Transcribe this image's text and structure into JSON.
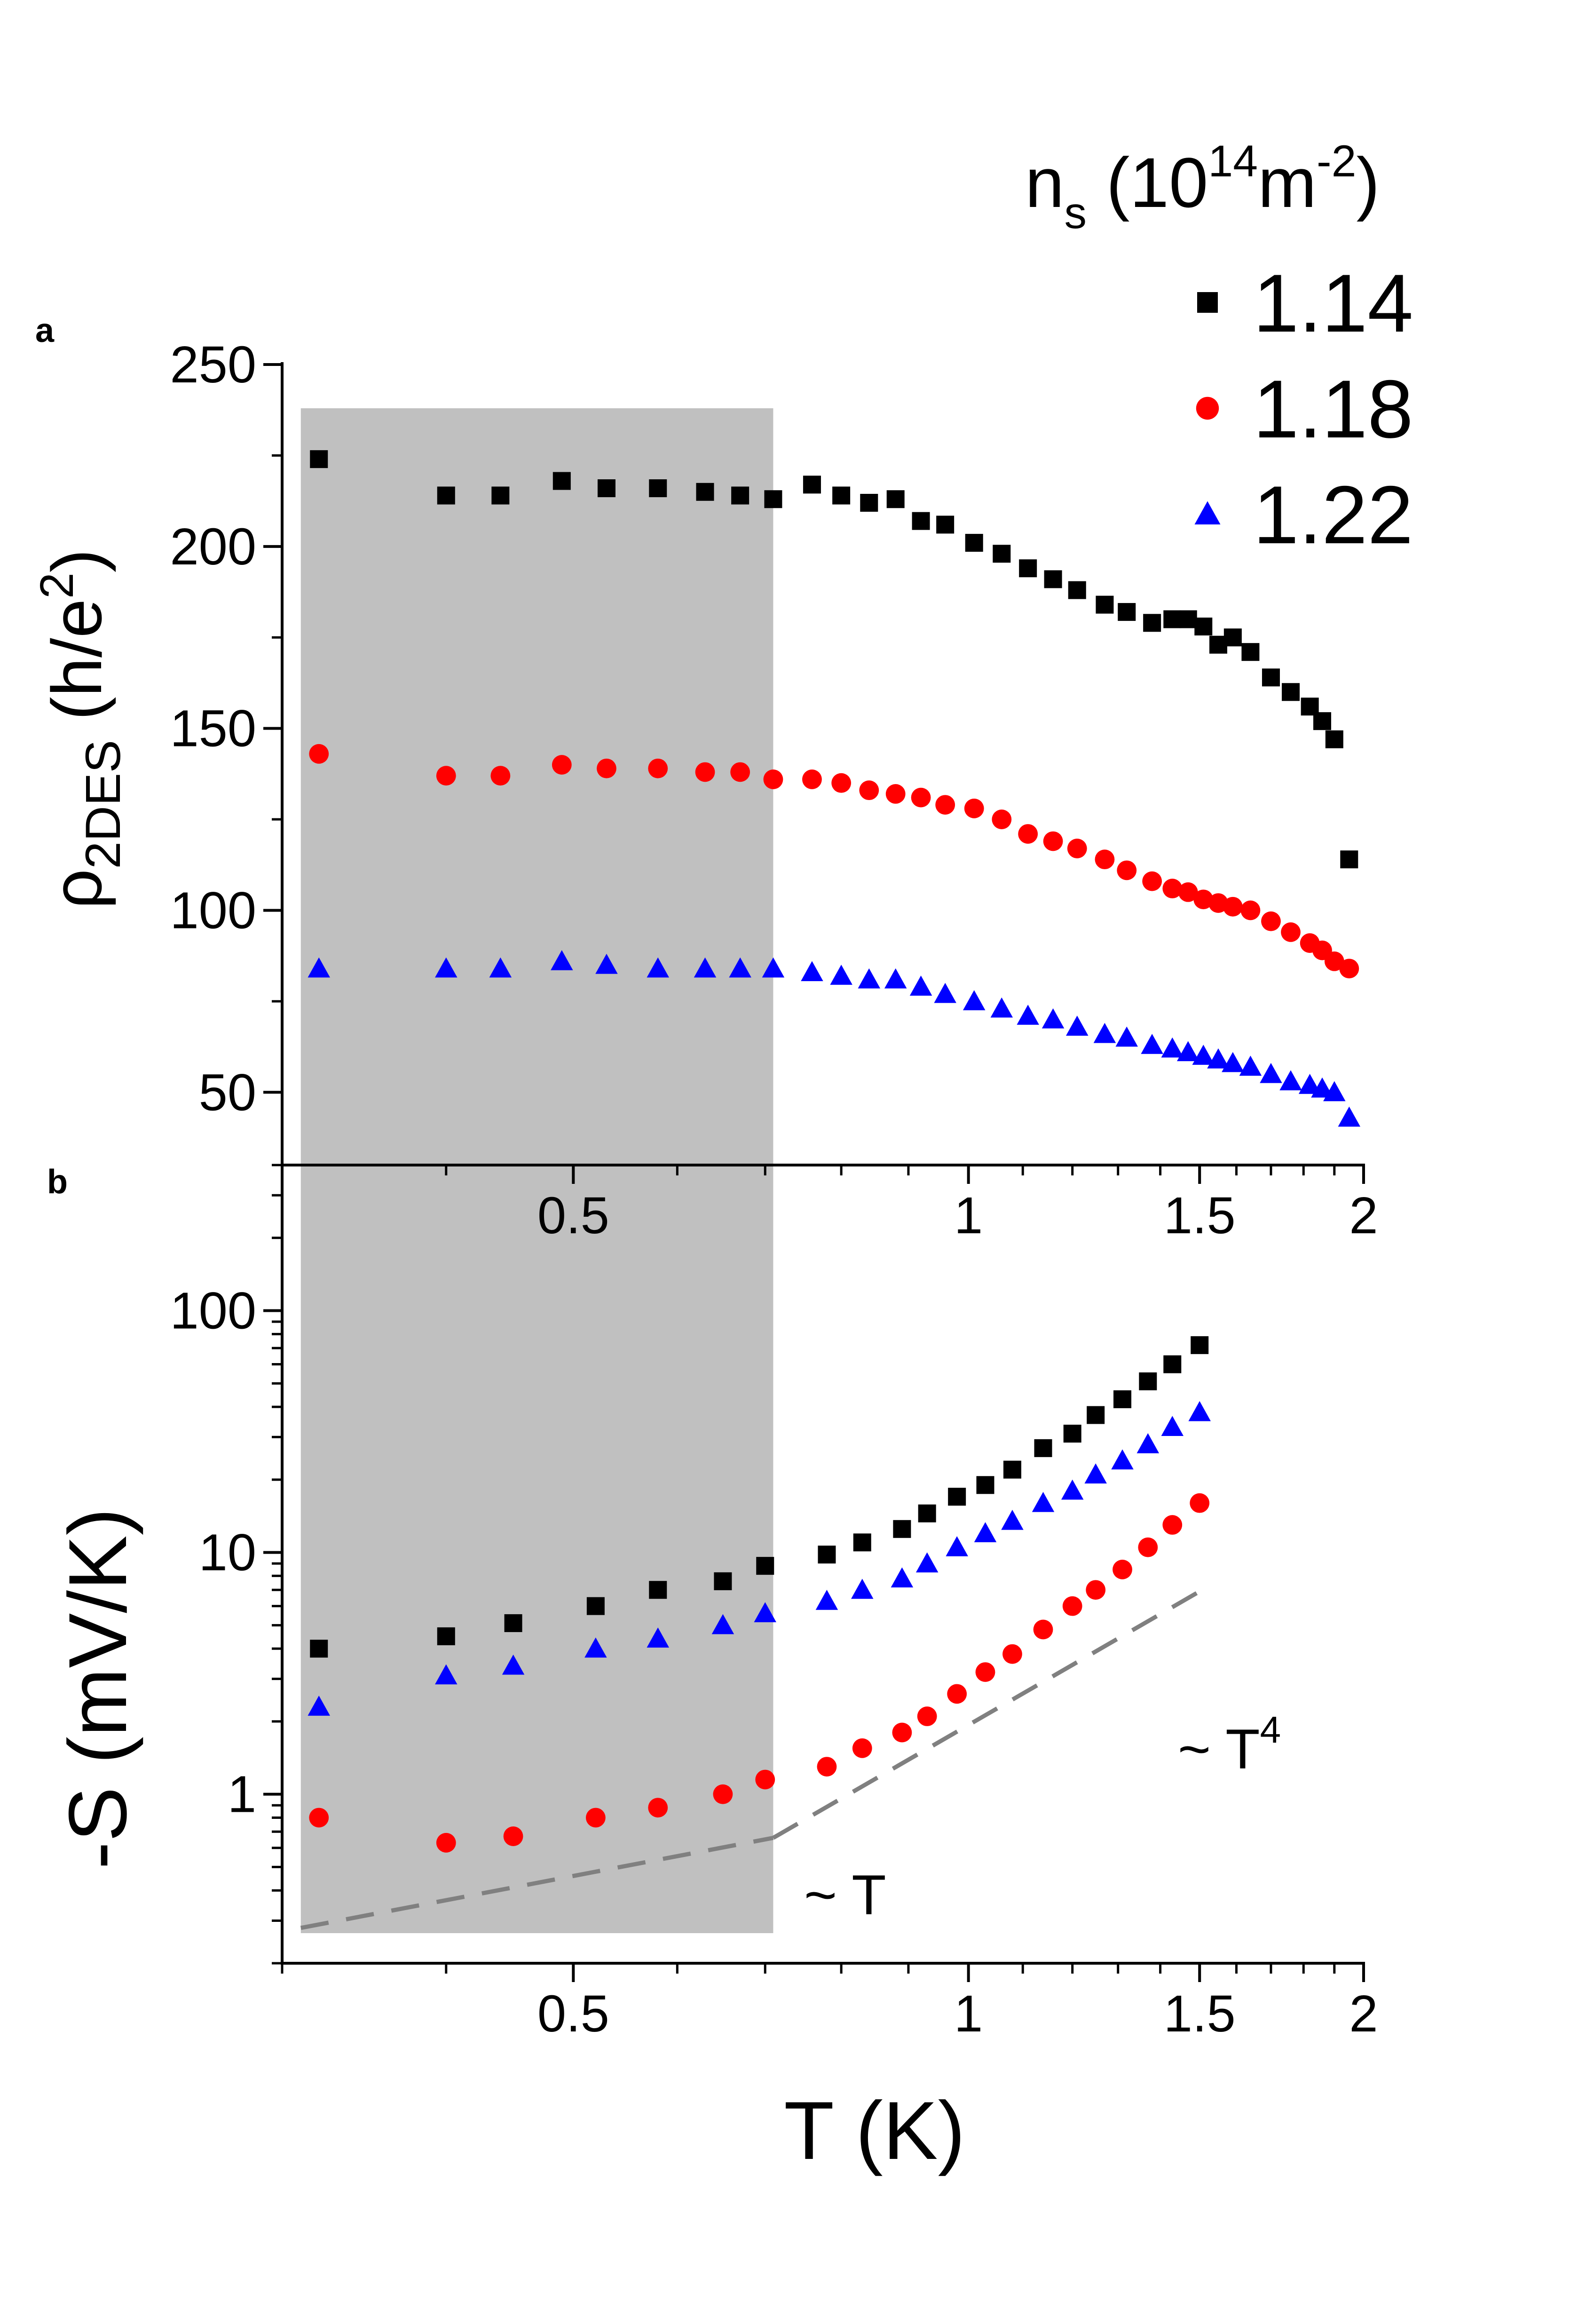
{
  "legend": {
    "title": {
      "base": "n",
      "sub": "s",
      "unit_open": " (10",
      "exp": "14",
      "unit_mid": "m",
      "exp2": "-2",
      "unit_close": ")"
    },
    "entries": [
      {
        "label": "1.14",
        "color": "#000000",
        "marker": "square"
      },
      {
        "label": "1.18",
        "color": "#ff0000",
        "marker": "circle"
      },
      {
        "label": "1.22",
        "color": "#0000ff",
        "marker": "triangle"
      }
    ]
  },
  "shade_color": "#c0c0c0",
  "chart_data": [
    {
      "panel": "a",
      "type": "scatter",
      "xscale": "log",
      "xlim": [
        0.3,
        2.0
      ],
      "ylim": [
        30,
        250
      ],
      "xticks": [
        {
          "v": 0.5,
          "label": "0.5"
        },
        {
          "v": 1,
          "label": "1"
        },
        {
          "v": 1.5,
          "label": "1.5"
        },
        {
          "v": 2,
          "label": "2"
        }
      ],
      "yticks": [
        {
          "v": 50,
          "label": "50"
        },
        {
          "v": 100,
          "label": "100"
        },
        {
          "v": 150,
          "label": "150"
        },
        {
          "v": 200,
          "label": "200"
        },
        {
          "v": 250,
          "label": "250"
        }
      ],
      "ylabel": {
        "rho": "ρ",
        "sub": "2DES",
        "open": " (h/e",
        "sup": "2",
        "close": ")"
      },
      "shaded_x": [
        0.31,
        0.71
      ],
      "series": [
        {
          "name": "1.14",
          "x": [
            0.32,
            0.4,
            0.44,
            0.49,
            0.53,
            0.58,
            0.63,
            0.67,
            0.71,
            0.76,
            0.8,
            0.84,
            0.88,
            0.92,
            0.96,
            1.01,
            1.06,
            1.11,
            1.16,
            1.21,
            1.27,
            1.32,
            1.38,
            1.43,
            1.47,
            1.51,
            1.55,
            1.59,
            1.64,
            1.7,
            1.76,
            1.82,
            1.86,
            1.9,
            1.95
          ],
          "y": [
            224,
            214,
            214,
            218,
            216,
            216,
            215,
            214,
            213,
            217,
            214,
            212,
            213,
            207,
            206,
            201,
            198,
            194,
            191,
            188,
            184,
            182,
            179,
            180,
            180,
            178,
            173,
            175,
            171,
            164,
            160,
            156,
            152,
            147,
            114
          ]
        },
        {
          "name": "1.18",
          "x": [
            0.32,
            0.4,
            0.44,
            0.49,
            0.53,
            0.58,
            0.63,
            0.67,
            0.71,
            0.76,
            0.8,
            0.84,
            0.88,
            0.92,
            0.96,
            1.01,
            1.06,
            1.11,
            1.16,
            1.21,
            1.27,
            1.32,
            1.38,
            1.43,
            1.47,
            1.51,
            1.55,
            1.59,
            1.64,
            1.7,
            1.76,
            1.82,
            1.86,
            1.9,
            1.95
          ],
          "y": [
            143,
            137,
            137,
            140,
            139,
            139,
            138,
            138,
            136,
            136,
            135,
            133,
            132,
            131,
            129,
            128,
            125,
            121,
            119,
            117,
            114,
            111,
            108,
            106,
            105,
            103,
            102,
            101,
            100,
            97,
            94,
            91,
            89,
            86,
            84
          ]
        },
        {
          "name": "1.22",
          "x": [
            0.32,
            0.4,
            0.44,
            0.49,
            0.53,
            0.58,
            0.63,
            0.67,
            0.71,
            0.76,
            0.8,
            0.84,
            0.88,
            0.92,
            0.96,
            1.01,
            1.06,
            1.11,
            1.16,
            1.21,
            1.27,
            1.32,
            1.38,
            1.43,
            1.47,
            1.51,
            1.55,
            1.59,
            1.64,
            1.7,
            1.76,
            1.82,
            1.86,
            1.9,
            1.95
          ],
          "y": [
            84,
            84,
            84,
            86,
            85,
            84,
            84,
            84,
            84,
            83,
            82,
            81,
            81,
            79,
            77,
            75,
            73,
            71,
            70,
            68,
            66,
            65,
            63,
            62,
            61,
            60,
            59,
            58,
            57,
            55,
            53,
            52,
            51,
            50,
            43
          ]
        }
      ]
    },
    {
      "panel": "b",
      "type": "scatter",
      "xscale": "log",
      "yscale": "log",
      "xlim": [
        0.3,
        2.0
      ],
      "ylim": [
        0.2,
        400
      ],
      "xticks": [
        {
          "v": 0.5,
          "label": "0.5"
        },
        {
          "v": 1,
          "label": "1"
        },
        {
          "v": 1.5,
          "label": "1.5"
        },
        {
          "v": 2,
          "label": "2"
        }
      ],
      "yticks": [
        {
          "v": 1,
          "label": "1"
        },
        {
          "v": 10,
          "label": "10"
        },
        {
          "v": 100,
          "label": "100"
        }
      ],
      "xlabel": "T (K)",
      "ylabel": "-S (mV/K)",
      "shaded_x": [
        0.31,
        0.71
      ],
      "series": [
        {
          "name": "1.14",
          "x": [
            0.32,
            0.4,
            0.45,
            0.52,
            0.58,
            0.65,
            0.7,
            0.78,
            0.83,
            0.89,
            0.93,
            0.98,
            1.03,
            1.08,
            1.14,
            1.2,
            1.25,
            1.31,
            1.37,
            1.43,
            1.5
          ],
          "y": [
            4.0,
            4.5,
            5.1,
            6.0,
            7.0,
            7.6,
            8.8,
            9.8,
            11.0,
            12.5,
            14.5,
            17.0,
            19.0,
            22.0,
            27.0,
            31.0,
            37.0,
            43.0,
            51.0,
            60.0,
            72.0
          ]
        },
        {
          "name": "1.18",
          "x": [
            0.32,
            0.4,
            0.45,
            0.52,
            0.58,
            0.65,
            0.7,
            0.78,
            0.83,
            0.89,
            0.93,
            0.98,
            1.03,
            1.08,
            1.14,
            1.2,
            1.25,
            1.31,
            1.37,
            1.43,
            1.5
          ],
          "y": [
            0.8,
            0.63,
            0.67,
            0.8,
            0.88,
            1.0,
            1.15,
            1.3,
            1.55,
            1.8,
            2.1,
            2.6,
            3.2,
            3.8,
            4.8,
            6.0,
            7.0,
            8.5,
            10.5,
            13.0,
            16.0
          ]
        },
        {
          "name": "1.22",
          "x": [
            0.32,
            0.4,
            0.45,
            0.52,
            0.58,
            0.65,
            0.7,
            0.78,
            0.83,
            0.89,
            0.93,
            0.98,
            1.03,
            1.08,
            1.14,
            1.2,
            1.25,
            1.31,
            1.37,
            1.43,
            1.5
          ],
          "y": [
            2.3,
            3.1,
            3.4,
            4.0,
            4.4,
            5.0,
            5.6,
            6.3,
            7.0,
            7.8,
            9.0,
            10.5,
            12.0,
            13.5,
            16.0,
            18.0,
            21.0,
            24.0,
            28.0,
            33.0,
            38.0
          ]
        }
      ],
      "guides": [
        {
          "label_main": "~ T",
          "label_sup": "",
          "x": [
            0.31,
            0.71
          ],
          "y": [
            0.28,
            0.66
          ]
        },
        {
          "label_main": "~ T",
          "label_sup": "4",
          "x": [
            0.71,
            1.5
          ],
          "y": [
            0.66,
            6.9
          ]
        }
      ]
    }
  ]
}
